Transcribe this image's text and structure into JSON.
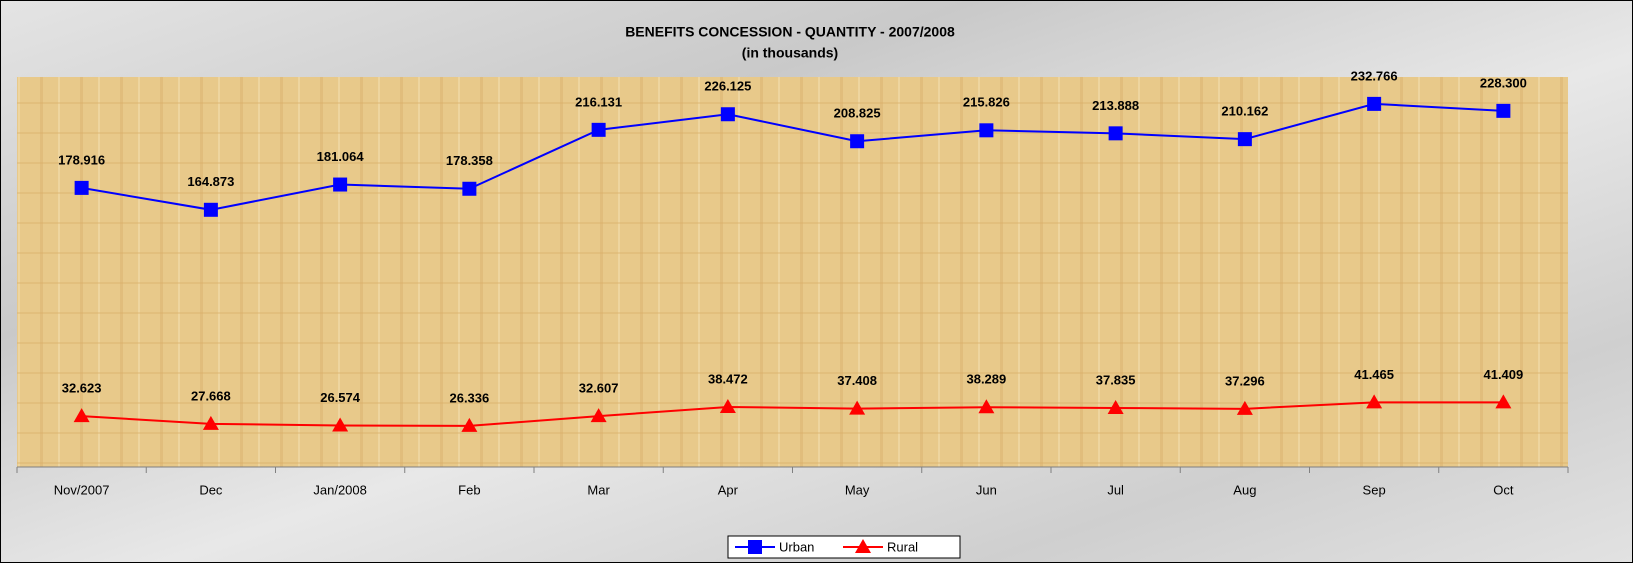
{
  "chart_data": {
    "type": "line",
    "title": "BENEFITS CONCESSION - QUANTITY - 2007/2008",
    "subtitle": "(in thousands)",
    "categories": [
      "Nov/2007",
      "Dec",
      "Jan/2008",
      "Feb",
      "Mar",
      "Apr",
      "May",
      "Jun",
      "Jul",
      "Aug",
      "Sep",
      "Oct"
    ],
    "series": [
      {
        "name": "Urban",
        "color": "#0000ff",
        "marker": "square",
        "values": [
          178.916,
          164.873,
          181.064,
          178.358,
          216.131,
          226.125,
          208.825,
          215.826,
          213.888,
          210.162,
          232.766,
          228.3
        ],
        "value_labels": [
          "178.916",
          "164.873",
          "181.064",
          "178.358",
          "216.131",
          "226.125",
          "208.825",
          "215.826",
          "213.888",
          "210.162",
          "232.766",
          "228.300"
        ]
      },
      {
        "name": "Rural",
        "color": "#ff0000",
        "marker": "triangle",
        "values": [
          32.623,
          27.668,
          26.574,
          26.336,
          32.607,
          38.472,
          37.408,
          38.289,
          37.835,
          37.296,
          41.465,
          41.409
        ],
        "value_labels": [
          "32.623",
          "27.668",
          "26.574",
          "26.336",
          "32.607",
          "38.472",
          "37.408",
          "38.289",
          "37.835",
          "37.296",
          "41.465",
          "41.409"
        ]
      }
    ],
    "ylim": [
      0,
      250
    ],
    "legend": "bottom"
  }
}
